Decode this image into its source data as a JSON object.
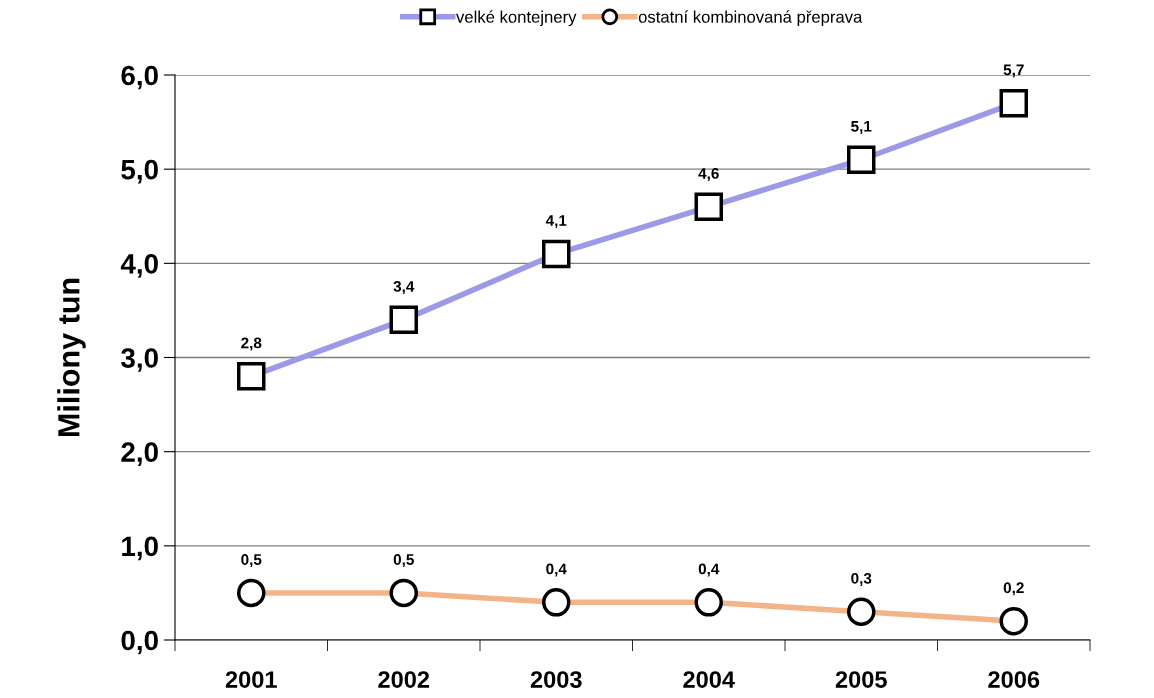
{
  "chart_data": {
    "type": "line",
    "ylabel": "Miliony tun",
    "categories": [
      "2001",
      "2002",
      "2003",
      "2004",
      "2005",
      "2006"
    ],
    "series": [
      {
        "name": "velké kontejnery",
        "color": "#9a9ae8",
        "marker": "square",
        "values": [
          2.8,
          3.4,
          4.1,
          4.6,
          5.1,
          5.7
        ],
        "value_labels": [
          "2,8",
          "3,4",
          "4,1",
          "4,6",
          "5,1",
          "5,7"
        ]
      },
      {
        "name": "ostatní kombinovaná přeprava",
        "color": "#f4b48a",
        "marker": "circle",
        "values": [
          0.5,
          0.5,
          0.4,
          0.4,
          0.3,
          0.2
        ],
        "value_labels": [
          "0,5",
          "0,5",
          "0,4",
          "0,4",
          "0,3",
          "0,2"
        ]
      }
    ],
    "ylim": [
      0,
      6
    ],
    "yticks": [
      {
        "value": 0,
        "label": "0,0"
      },
      {
        "value": 1,
        "label": "1,0"
      },
      {
        "value": 2,
        "label": "2,0"
      },
      {
        "value": 3,
        "label": "3,0"
      },
      {
        "value": 4,
        "label": "4,0"
      },
      {
        "value": 5,
        "label": "5,0"
      },
      {
        "value": 6,
        "label": "6,0"
      }
    ],
    "grid": "y",
    "legend": "top",
    "line_style": "solid"
  }
}
